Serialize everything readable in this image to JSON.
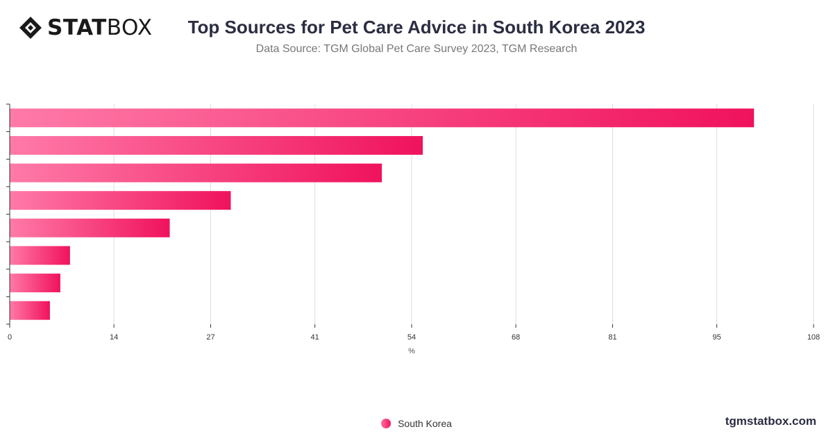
{
  "header": {
    "logo_bold": "STAT",
    "logo_light": "BOX",
    "title": "Top Sources for Pet Care Advice in South Korea 2023",
    "subtitle": "Data Source: TGM Global Pet Care Survey 2023, TGM Research"
  },
  "footer": {
    "site": "tgmstatbox.com"
  },
  "colors": {
    "bar_start": "#ff7aa8",
    "bar_end": "#f0125d",
    "grid": "#dddddd",
    "axis": "#333333"
  },
  "chart_data": {
    "type": "bar",
    "orientation": "horizontal",
    "categories": [
      "",
      "",
      "",
      "",
      "",
      "",
      "",
      ""
    ],
    "series": [
      {
        "name": "South Korea",
        "values": [
          100,
          55.5,
          50,
          29.7,
          21.5,
          8.1,
          6.8,
          5.4
        ]
      }
    ],
    "xlim": [
      0,
      108
    ],
    "x_ticks": [
      0,
      14,
      27,
      41,
      54,
      68,
      81,
      95,
      108
    ],
    "xlabel": "%",
    "ylabel": "",
    "grid": true,
    "legend": "bottom-center"
  }
}
